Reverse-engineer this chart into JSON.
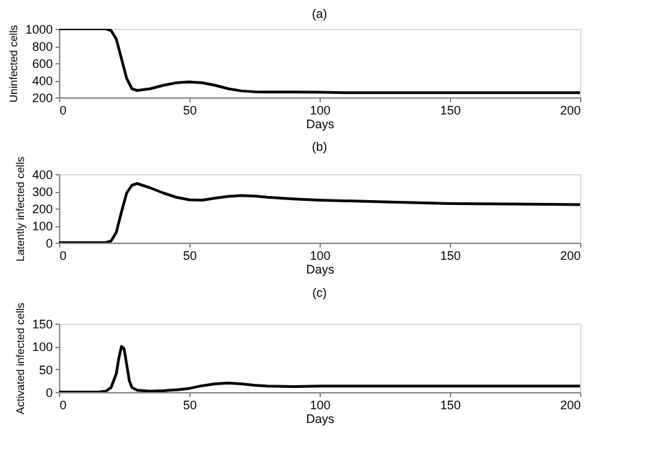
{
  "chart_data": [
    {
      "type": "line",
      "title": "(a)",
      "xlabel": "Days",
      "ylabel": "Uninfected cells",
      "xlim": [
        0,
        200
      ],
      "xticks": [
        0,
        50,
        100,
        150,
        200
      ],
      "ylim": [
        200,
        1000
      ],
      "yticks": [
        200,
        400,
        600,
        800,
        1000
      ],
      "grid": false,
      "marker": "none",
      "line_style": "solid",
      "x": [
        0,
        15,
        18,
        20,
        22,
        24,
        26,
        28,
        30,
        35,
        40,
        45,
        50,
        55,
        60,
        65,
        70,
        75,
        80,
        90,
        100,
        110,
        120,
        150,
        200
      ],
      "series": [
        {
          "color": "#000000",
          "values": [
            1000,
            1000,
            1000,
            980,
            880,
            650,
            420,
            300,
            280,
            300,
            340,
            370,
            380,
            370,
            340,
            300,
            275,
            265,
            262,
            262,
            260,
            255,
            255,
            255,
            255
          ]
        }
      ]
    },
    {
      "type": "line",
      "title": "(b)",
      "xlabel": "Days",
      "ylabel": "Latently infected cells",
      "xlim": [
        0,
        200
      ],
      "xticks": [
        0,
        50,
        100,
        150,
        200
      ],
      "ylim": [
        0,
        400
      ],
      "yticks": [
        0,
        100,
        200,
        300,
        400
      ],
      "grid": false,
      "marker": "none",
      "line_style": "solid",
      "x": [
        0,
        15,
        18,
        20,
        22,
        24,
        26,
        28,
        30,
        35,
        40,
        45,
        50,
        55,
        60,
        65,
        70,
        75,
        80,
        90,
        100,
        120,
        150,
        200
      ],
      "series": [
        {
          "color": "#000000",
          "values": [
            0,
            0,
            0,
            10,
            60,
            180,
            290,
            335,
            345,
            320,
            290,
            265,
            250,
            248,
            260,
            270,
            275,
            272,
            265,
            255,
            248,
            240,
            228,
            222
          ]
        }
      ]
    },
    {
      "type": "line",
      "title": "(c)",
      "xlabel": "Days",
      "ylabel": "Activated infected cells",
      "xlim": [
        0,
        200
      ],
      "xticks": [
        0,
        50,
        100,
        150,
        200
      ],
      "ylim": [
        0,
        150
      ],
      "yticks": [
        0,
        50,
        100,
        150
      ],
      "grid": false,
      "marker": "none",
      "line_style": "solid",
      "x": [
        0,
        15,
        18,
        20,
        22,
        23,
        24,
        25,
        26,
        27,
        28,
        30,
        35,
        40,
        45,
        50,
        55,
        60,
        65,
        70,
        75,
        80,
        90,
        100,
        150,
        200
      ],
      "series": [
        {
          "color": "#000000",
          "values": [
            0,
            0,
            2,
            10,
            40,
            75,
            100,
            95,
            60,
            25,
            10,
            4,
            2,
            3,
            5,
            8,
            14,
            18,
            20,
            18,
            15,
            13,
            12,
            13,
            13,
            13
          ]
        }
      ]
    }
  ]
}
